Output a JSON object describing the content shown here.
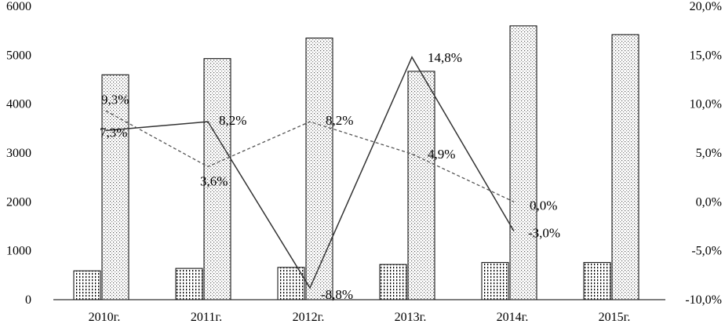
{
  "chart_data": {
    "type": "bar",
    "title": "",
    "xlabel": "",
    "ylabel_left": "",
    "ylabel_right": "",
    "categories": [
      "2010г.",
      "2011г.",
      "2012г.",
      "2013г.",
      "2014г.",
      "2015г."
    ],
    "left_axis": {
      "range": [
        0,
        6000
      ],
      "ticks": [
        "0",
        "1000",
        "2000",
        "3000",
        "4000",
        "5000",
        "6000"
      ],
      "tick_values": [
        0,
        1000,
        2000,
        3000,
        4000,
        5000,
        6000
      ]
    },
    "right_axis": {
      "range": [
        -10,
        20
      ],
      "ticks": [
        "-10,0%",
        "-5,0%",
        "0,0%",
        "5,0%",
        "10,0%",
        "15,0%",
        "20,0%"
      ],
      "tick_values": [
        -10,
        -5,
        0,
        5,
        10,
        15,
        20
      ]
    },
    "bar_series": [
      {
        "values": [
          590,
          640,
          660,
          720,
          760,
          760
        ],
        "pattern": "dots",
        "axis": "left"
      },
      {
        "values": [
          4600,
          4930,
          5350,
          4670,
          5600,
          5420
        ],
        "pattern": "grid",
        "axis": "left"
      }
    ],
    "line_series": [
      {
        "style": "solid",
        "axis": "right",
        "values": [
          7.3,
          8.2,
          -8.8,
          14.8,
          -3.0
        ],
        "labels": [
          "7,3%",
          "8,2%",
          "-8,8%",
          "14,8%",
          "-3,0%"
        ]
      },
      {
        "style": "dashed",
        "axis": "right",
        "values": [
          9.3,
          3.6,
          8.2,
          4.9,
          0.0
        ],
        "labels": [
          "9,3%",
          "3,6%",
          "8,2%",
          "4,9%",
          "0,0%"
        ]
      }
    ],
    "grid": false,
    "legend": "none",
    "colors": {
      "ink": "#000000",
      "line_solid": "#333333",
      "line_dashed": "#555555",
      "bar_fill": "#ffffff"
    }
  }
}
